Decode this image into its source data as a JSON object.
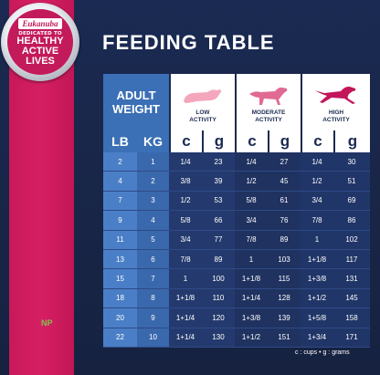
{
  "badge": {
    "brand": "Eukanuba",
    "tagline_small": "DEDICATED TO",
    "tagline_big": [
      "HEALTHY",
      "ACTIVE",
      "LIVES"
    ]
  },
  "title": "FEEDING TABLE",
  "header": {
    "adult_weight": [
      "ADULT",
      "WEIGHT"
    ],
    "activities": [
      {
        "label": [
          "LOW",
          "ACTIVITY"
        ],
        "icon": "resting-dog-icon",
        "color": "#f4a6bd"
      },
      {
        "label": [
          "MODERATE",
          "ACTIVITY"
        ],
        "icon": "trotting-dog-icon",
        "color": "#e06a93"
      },
      {
        "label": [
          "HIGH",
          "ACTIVITY"
        ],
        "icon": "running-dog-icon",
        "color": "#c3165a"
      }
    ],
    "units": [
      "LB",
      "KG",
      "c",
      "g",
      "c",
      "g",
      "c",
      "g"
    ]
  },
  "rows": [
    [
      "2",
      "1",
      "1/4",
      "23",
      "1/4",
      "27",
      "1/4",
      "30"
    ],
    [
      "4",
      "2",
      "3/8",
      "39",
      "1/2",
      "45",
      "1/2",
      "51"
    ],
    [
      "7",
      "3",
      "1/2",
      "53",
      "5/8",
      "61",
      "3/4",
      "69"
    ],
    [
      "9",
      "4",
      "5/8",
      "66",
      "3/4",
      "76",
      "7/8",
      "86"
    ],
    [
      "11",
      "5",
      "3/4",
      "77",
      "7/8",
      "89",
      "1",
      "102"
    ],
    [
      "13",
      "6",
      "7/8",
      "89",
      "1",
      "103",
      "1+1/8",
      "117"
    ],
    [
      "15",
      "7",
      "1",
      "100",
      "1+1/8",
      "115",
      "1+3/8",
      "131"
    ],
    [
      "18",
      "8",
      "1+1/8",
      "110",
      "1+1/4",
      "128",
      "1+1/2",
      "145"
    ],
    [
      "20",
      "9",
      "1+1/4",
      "120",
      "1+3/8",
      "139",
      "1+5/8",
      "158"
    ],
    [
      "22",
      "10",
      "1+1/4",
      "130",
      "1+1/2",
      "151",
      "1+3/4",
      "171"
    ]
  ],
  "legend": "c : cups • g : grams",
  "mark": "NP",
  "colors": {
    "background": "#1b2a52",
    "pink": "#d61f63",
    "blue_header": "#3b6fb6"
  }
}
